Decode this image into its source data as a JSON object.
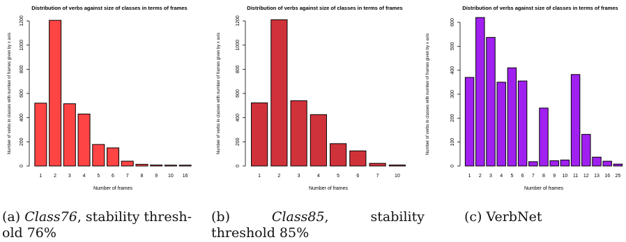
{
  "colors": {
    "panel_a_bar": "#ff4444",
    "panel_b_bar": "#d0323a",
    "panel_c_bar": "#a020f0",
    "outline": "#000000"
  },
  "chart_data": [
    {
      "type": "bar",
      "title": "Distribution of verbs against size of classes in terms of frames",
      "xlabel": "Number of frames",
      "ylabel": "Number of verbs in classes with number of frames given by x axis",
      "categories": [
        "1",
        "2",
        "3",
        "4",
        "5",
        "6",
        "7",
        "8",
        "9",
        "10",
        "16"
      ],
      "values": [
        520,
        1205,
        515,
        430,
        178,
        150,
        40,
        14,
        8,
        7,
        7
      ],
      "ylim": [
        0,
        1200
      ],
      "yticks": [
        0,
        200,
        400,
        600,
        800,
        1000,
        1200
      ],
      "grid": false
    },
    {
      "type": "bar",
      "title": "Distribution of verbs against size of classes in terms of frames",
      "xlabel": "Number of frames",
      "ylabel": "Number of verbs in classes with number of frames given by x axis",
      "categories": [
        "1",
        "2",
        "3",
        "4",
        "5",
        "6",
        "7",
        "10"
      ],
      "values": [
        522,
        1210,
        540,
        425,
        185,
        125,
        22,
        8
      ],
      "ylim": [
        0,
        1200
      ],
      "yticks": [
        0,
        200,
        400,
        600,
        800,
        1000,
        1200
      ],
      "grid": false
    },
    {
      "type": "bar",
      "title": "Distribution of verbs against size of classes in terms of frames",
      "xlabel": "Number of frames",
      "ylabel": "Number of verbs in classes with number of frames given by x axis",
      "categories": [
        "1",
        "2",
        "3",
        "4",
        "5",
        "6",
        "7",
        "8",
        "9",
        "10",
        "11",
        "12",
        "13",
        "16",
        "25"
      ],
      "values": [
        370,
        620,
        537,
        350,
        410,
        355,
        18,
        242,
        22,
        25,
        382,
        132,
        37,
        20,
        8
      ],
      "ylim": [
        0,
        600
      ],
      "yticks": [
        0,
        100,
        200,
        300,
        400,
        500,
        600
      ],
      "grid": false
    }
  ],
  "captions": {
    "a": {
      "tag": "(a)",
      "name": "Class76",
      "line1_rest": ", stability thresh-",
      "line2": "old 76%"
    },
    "b": {
      "tag": "(b)",
      "name": "Class85",
      "word": ",",
      "word2": "stability",
      "line2": "threshold 85%"
    },
    "c": {
      "text": "(c) VerbNet"
    }
  }
}
